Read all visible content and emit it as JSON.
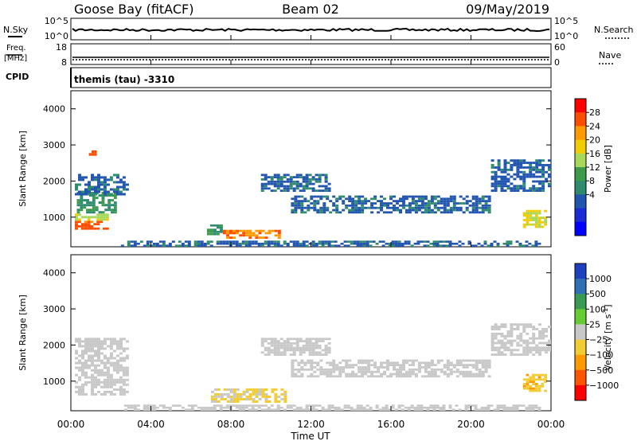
{
  "header": {
    "station": "Goose Bay (fitACF)",
    "beam": "Beam 02",
    "date": "09/May/2019"
  },
  "left_labels": {
    "nsky": "N.Sky",
    "freq_top": "Freq.",
    "freq_unit": "[MHz]",
    "cpid": "CPID"
  },
  "right_labels": {
    "nsearch": "N.Search",
    "nave": "Nave"
  },
  "cpid_text": "themis (tau) -3310",
  "noise_panel": {
    "left_ticks": [
      "10^5",
      "10^0"
    ],
    "right_ticks": [
      "10^5",
      "10^0"
    ]
  },
  "freq_panel": {
    "left_ticks": [
      "18",
      "8"
    ],
    "right_ticks": [
      "60",
      "0"
    ]
  },
  "axes": {
    "ylabel": "Slant Range [km]",
    "xlabel": "Time UT",
    "y_ticks": [
      1000,
      2000,
      3000,
      4000
    ],
    "x_ticks": [
      "00:00",
      "04:00",
      "08:00",
      "12:00",
      "16:00",
      "20:00",
      "00:00"
    ]
  },
  "colorbars": {
    "power": {
      "label": "Power [dB]",
      "ticks": [
        "28",
        "24",
        "20",
        "16",
        "12",
        "8",
        "4"
      ],
      "colors": [
        "#ff0000",
        "#ff4d00",
        "#ff9900",
        "#f2cc00",
        "#a6d95a",
        "#3c9a4a",
        "#2e8b6e",
        "#2255b0",
        "#1a2cd6",
        "#0000ff"
      ]
    },
    "velocity": {
      "label": "Velocity [m s",
      "label_sup": "-1",
      "label_close": "]",
      "ticks": [
        "1000",
        "500",
        "100",
        "25",
        "−25",
        "−100",
        "−500",
        "−1000"
      ],
      "colors": [
        "#1e3fbf",
        "#2f6fb5",
        "#3a9a52",
        "#66cc33",
        "#c8c8c8",
        "#f2cc33",
        "#ff9900",
        "#ff5500",
        "#ff0000"
      ]
    }
  },
  "chart_data": [
    {
      "type": "heatmap",
      "title": "Power",
      "xlabel": "Time UT",
      "ylabel": "Slant Range [km]",
      "x_range_hours": [
        0,
        24
      ],
      "ylim": [
        180,
        4500
      ],
      "colorbar_range_db": [
        0,
        32
      ],
      "regions": [
        {
          "t": [
            0.2,
            1.9
          ],
          "r": [
            650,
            900
          ],
          "value": 28
        },
        {
          "t": [
            0.2,
            1.9
          ],
          "r": [
            900,
            1100
          ],
          "value": 18
        },
        {
          "t": [
            0.3,
            2.3
          ],
          "r": [
            1100,
            1700
          ],
          "value": 12
        },
        {
          "t": [
            0.2,
            2.9
          ],
          "r": [
            1600,
            2200
          ],
          "value": 8
        },
        {
          "t": [
            7.6,
            10.5
          ],
          "r": [
            400,
            650
          ],
          "value": 26
        },
        {
          "t": [
            6.8,
            7.6
          ],
          "r": [
            500,
            800
          ],
          "value": 12
        },
        {
          "t": [
            2.5,
            23.5
          ],
          "r": [
            180,
            350
          ],
          "value": 8
        },
        {
          "t": [
            9.5,
            13.0
          ],
          "r": [
            1700,
            2200
          ],
          "value": 8
        },
        {
          "t": [
            11.0,
            21.0
          ],
          "r": [
            1100,
            1600
          ],
          "value": 8
        },
        {
          "t": [
            21.0,
            24.0
          ],
          "r": [
            1700,
            2600
          ],
          "value": 8
        },
        {
          "t": [
            22.6,
            23.8
          ],
          "r": [
            700,
            1200
          ],
          "value": 20
        },
        {
          "t": [
            0.9,
            1.3
          ],
          "r": [
            2700,
            2850
          ],
          "value": 28
        }
      ]
    },
    {
      "type": "heatmap",
      "title": "Velocity",
      "xlabel": "Time UT",
      "ylabel": "Slant Range [km]",
      "x_range_hours": [
        0,
        24
      ],
      "ylim": [
        180,
        4500
      ],
      "colorbar_range_ms": [
        -1000,
        1000
      ],
      "regions": [
        {
          "t": [
            0.2,
            2.9
          ],
          "r": [
            600,
            2200
          ],
          "value": 0
        },
        {
          "t": [
            7.0,
            10.8
          ],
          "r": [
            400,
            800
          ],
          "value": -150
        },
        {
          "t": [
            9.5,
            13.0
          ],
          "r": [
            1700,
            2200
          ],
          "value": 0
        },
        {
          "t": [
            11.0,
            21.0
          ],
          "r": [
            1100,
            1600
          ],
          "value": 0
        },
        {
          "t": [
            21.0,
            24.0
          ],
          "r": [
            1700,
            2600
          ],
          "value": 0
        },
        {
          "t": [
            22.6,
            23.8
          ],
          "r": [
            700,
            1200
          ],
          "value": -300
        },
        {
          "t": [
            2.5,
            23.5
          ],
          "r": [
            180,
            350
          ],
          "value": 0
        }
      ]
    }
  ]
}
